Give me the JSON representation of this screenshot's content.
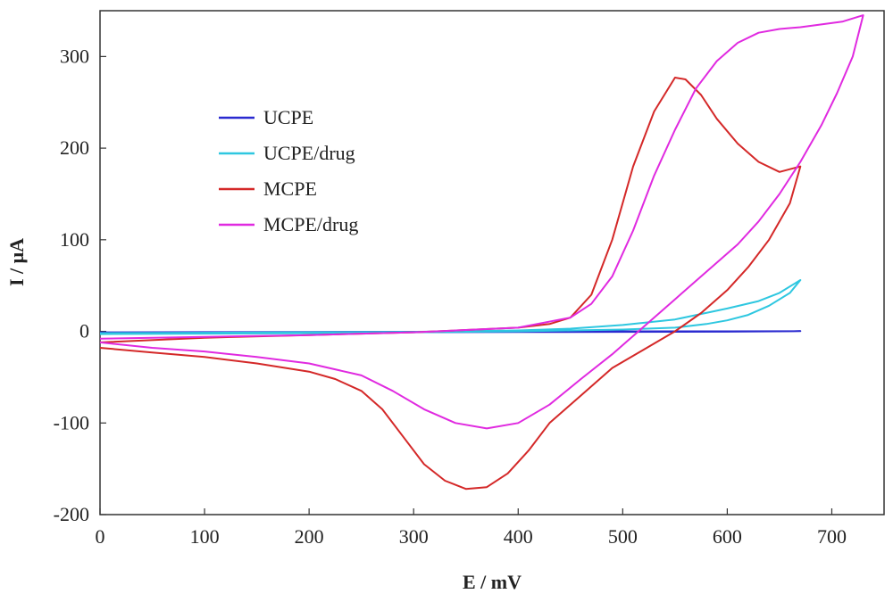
{
  "chart_data": {
    "type": "line",
    "title": "",
    "xlabel": "E / mV",
    "ylabel": "I / μA",
    "xlim": [
      0,
      750
    ],
    "ylim": [
      -200,
      350
    ],
    "x_ticks": [
      0,
      100,
      200,
      300,
      400,
      500,
      600,
      700
    ],
    "y_ticks": [
      -200,
      -100,
      0,
      100,
      200,
      300
    ],
    "grid": false,
    "legend_position": "upper-left",
    "series": [
      {
        "name": "UCPE",
        "color": "#2a2ad0",
        "points": [
          [
            0,
            -1
          ],
          [
            100,
            -0.8
          ],
          [
            200,
            -0.6
          ],
          [
            300,
            -0.4
          ],
          [
            400,
            -0.2
          ],
          [
            500,
            0
          ],
          [
            600,
            0
          ],
          [
            670,
            0.2
          ],
          [
            600,
            -0.3
          ],
          [
            500,
            -0.5
          ],
          [
            400,
            -0.7
          ],
          [
            300,
            -0.9
          ],
          [
            200,
            -1.1
          ],
          [
            100,
            -1.3
          ],
          [
            0,
            -1.5
          ]
        ]
      },
      {
        "name": "UCPE/drug",
        "color": "#2ec7e0",
        "points": [
          [
            0,
            -2
          ],
          [
            100,
            -1.5
          ],
          [
            200,
            -1
          ],
          [
            300,
            -0.5
          ],
          [
            400,
            1
          ],
          [
            450,
            3
          ],
          [
            500,
            7
          ],
          [
            550,
            13
          ],
          [
            600,
            25
          ],
          [
            630,
            33
          ],
          [
            650,
            42
          ],
          [
            670,
            56
          ],
          [
            660,
            42
          ],
          [
            640,
            28
          ],
          [
            620,
            18
          ],
          [
            600,
            12
          ],
          [
            580,
            8
          ],
          [
            550,
            4
          ],
          [
            500,
            2
          ],
          [
            450,
            1
          ],
          [
            400,
            0
          ],
          [
            300,
            -1
          ],
          [
            200,
            -2
          ],
          [
            100,
            -2.5
          ],
          [
            0,
            -3
          ]
        ]
      },
      {
        "name": "MCPE",
        "color": "#d42828",
        "points": [
          [
            0,
            -12
          ],
          [
            100,
            -7
          ],
          [
            200,
            -4
          ],
          [
            300,
            -1
          ],
          [
            400,
            4
          ],
          [
            430,
            8
          ],
          [
            450,
            15
          ],
          [
            470,
            40
          ],
          [
            490,
            100
          ],
          [
            510,
            180
          ],
          [
            530,
            240
          ],
          [
            550,
            277
          ],
          [
            560,
            275
          ],
          [
            575,
            258
          ],
          [
            590,
            232
          ],
          [
            610,
            205
          ],
          [
            630,
            185
          ],
          [
            650,
            174
          ],
          [
            670,
            180
          ],
          [
            660,
            140
          ],
          [
            640,
            100
          ],
          [
            620,
            70
          ],
          [
            600,
            45
          ],
          [
            575,
            20
          ],
          [
            550,
            0
          ],
          [
            520,
            -20
          ],
          [
            490,
            -40
          ],
          [
            460,
            -70
          ],
          [
            430,
            -100
          ],
          [
            410,
            -130
          ],
          [
            390,
            -155
          ],
          [
            370,
            -170
          ],
          [
            350,
            -172
          ],
          [
            330,
            -163
          ],
          [
            310,
            -145
          ],
          [
            290,
            -115
          ],
          [
            270,
            -85
          ],
          [
            250,
            -65
          ],
          [
            225,
            -52
          ],
          [
            200,
            -44
          ],
          [
            150,
            -35
          ],
          [
            100,
            -28
          ],
          [
            50,
            -23
          ],
          [
            0,
            -18
          ]
        ]
      },
      {
        "name": "MCPE/drug",
        "color": "#e02ae0",
        "points": [
          [
            0,
            -8
          ],
          [
            100,
            -6
          ],
          [
            200,
            -4
          ],
          [
            300,
            -1
          ],
          [
            400,
            4
          ],
          [
            450,
            15
          ],
          [
            470,
            30
          ],
          [
            490,
            60
          ],
          [
            510,
            110
          ],
          [
            530,
            170
          ],
          [
            550,
            220
          ],
          [
            570,
            265
          ],
          [
            590,
            295
          ],
          [
            610,
            315
          ],
          [
            630,
            326
          ],
          [
            650,
            330
          ],
          [
            670,
            332
          ],
          [
            690,
            335
          ],
          [
            710,
            338
          ],
          [
            730,
            345
          ],
          [
            720,
            300
          ],
          [
            705,
            260
          ],
          [
            690,
            225
          ],
          [
            670,
            185
          ],
          [
            650,
            150
          ],
          [
            630,
            120
          ],
          [
            610,
            95
          ],
          [
            590,
            75
          ],
          [
            570,
            55
          ],
          [
            550,
            35
          ],
          [
            530,
            15
          ],
          [
            510,
            -5
          ],
          [
            490,
            -25
          ],
          [
            460,
            -52
          ],
          [
            430,
            -80
          ],
          [
            400,
            -100
          ],
          [
            370,
            -106
          ],
          [
            340,
            -100
          ],
          [
            310,
            -85
          ],
          [
            280,
            -65
          ],
          [
            250,
            -48
          ],
          [
            200,
            -35
          ],
          [
            150,
            -28
          ],
          [
            100,
            -22
          ],
          [
            50,
            -18
          ],
          [
            0,
            -12
          ]
        ]
      }
    ]
  }
}
